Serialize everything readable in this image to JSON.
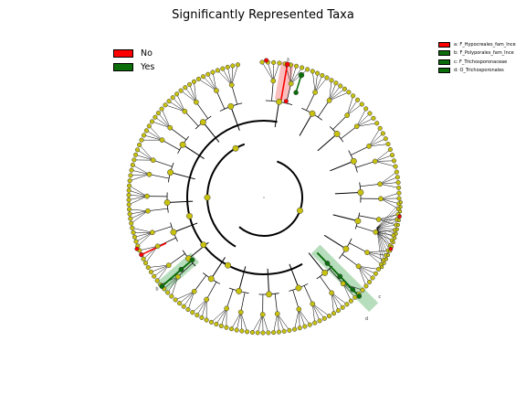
{
  "title": "Significantly Represented Taxa",
  "colors": {
    "background": "#ffffff",
    "node_default": "#c8c20e",
    "node_no": "#ff0000",
    "node_yes": "#0b6e0b",
    "edge": "#000000",
    "highlight_no": "#f7a9a9",
    "highlight_yes": "#9fd3a6"
  },
  "legend_main": [
    {
      "label": "No",
      "color": "#ff0000"
    },
    {
      "label": "Yes",
      "color": "#0b6e0b"
    }
  ],
  "legend_clades": [
    {
      "label": "a: F_Hypocreales_fam_Ince",
      "color": "#ff0000"
    },
    {
      "label": "b: F_Polyporales_fam_Ince",
      "color": "#0b6e0b"
    },
    {
      "label": "c: F_Trichosporonaceae",
      "color": "#0b6e0b"
    },
    {
      "label": "d: O_Trichosporonales",
      "color": "#0b6e0b"
    }
  ],
  "highlight_labels": [
    {
      "text": "a",
      "clade": "a"
    },
    {
      "text": "b",
      "clade": "b"
    },
    {
      "text": "c",
      "clade": "c"
    },
    {
      "text": "d",
      "clade": "d"
    }
  ]
}
